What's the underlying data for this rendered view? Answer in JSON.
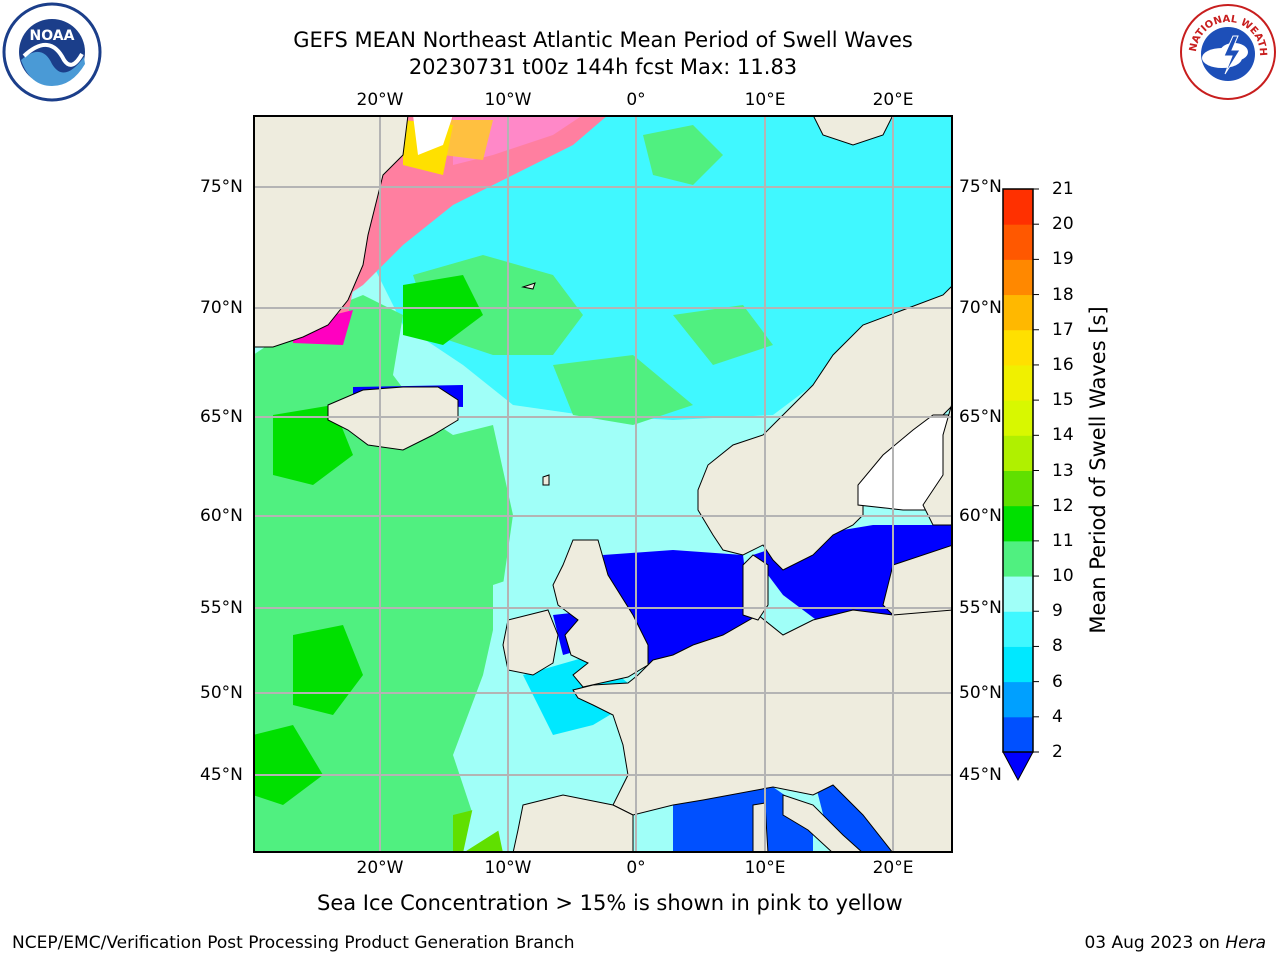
{
  "title": {
    "line1": "GEFS MEAN Northeast Atlantic Mean Period of Swell Waves",
    "line2": "20230731 t00z 144h fcst   Max: 11.83"
  },
  "lon_labels": [
    "20°W",
    "10°W",
    "0°",
    "10°E",
    "20°E"
  ],
  "lat_labels": [
    "75°N",
    "70°N",
    "65°N",
    "60°N",
    "55°N",
    "50°N",
    "45°N"
  ],
  "colorbar": {
    "label": "Mean Period of Swell Waves [s]",
    "ticks": [
      "2",
      "4",
      "6",
      "8",
      "9",
      "10",
      "11",
      "12",
      "13",
      "14",
      "15",
      "16",
      "17",
      "18",
      "19",
      "20",
      "21"
    ],
    "colors": [
      "#0050ff",
      "#00a0ff",
      "#00e8ff",
      "#40f8ff",
      "#a0fff8",
      "#50f080",
      "#00e000",
      "#60e000",
      "#b0f000",
      "#d8f800",
      "#f0f000",
      "#ffe000",
      "#ffb800",
      "#ff8800",
      "#ff5800",
      "#ff3000"
    ],
    "under_color": "#0000ff"
  },
  "subtitle": "Sea Ice Concentration > 15% is shown in pink to yellow",
  "footer": {
    "credit": "NCEP/EMC/Verification Post Processing Product Generation Branch",
    "date_prefix": "03 Aug 2023 on ",
    "machine": "Hera"
  },
  "logos": {
    "noaa_text": "NOAA",
    "nws_text": "NATIONAL WEATHER SERVICE"
  },
  "colors": {
    "land": "#eeecde",
    "grid": "#b4b4b4",
    "ocean_base": "#a0fff8"
  }
}
